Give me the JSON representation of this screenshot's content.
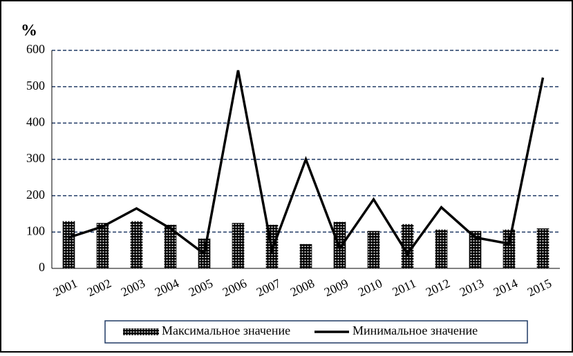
{
  "chart_data": {
    "type": "combo",
    "y_label": "%",
    "categories": [
      "2001",
      "2002",
      "2003",
      "2004",
      "2005",
      "2006",
      "2007",
      "2008",
      "2009",
      "2010",
      "2011",
      "2012",
      "2013",
      "2014",
      "2015"
    ],
    "series": [
      {
        "name": "Максимальное значение",
        "type": "bar",
        "color": "#000000",
        "values": [
          130,
          125,
          130,
          120,
          82,
          125,
          120,
          67,
          128,
          103,
          122,
          107,
          103,
          107,
          110
        ]
      },
      {
        "name": "Минимальное значение",
        "type": "line",
        "color": "#000000",
        "values": [
          85,
          115,
          165,
          110,
          40,
          545,
          50,
          300,
          55,
          190,
          40,
          168,
          85,
          68,
          525
        ]
      }
    ],
    "ylim": [
      0,
      600
    ],
    "yticks": [
      0,
      100,
      200,
      300,
      400,
      500,
      600
    ],
    "grid": true,
    "grid_color": "#1f3864",
    "legend": "bottom"
  }
}
